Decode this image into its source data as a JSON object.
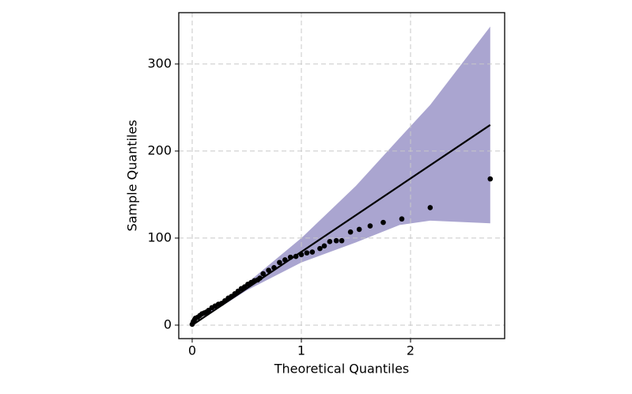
{
  "chart_data": {
    "type": "qqplot",
    "x_label": "Theoretical Quantiles",
    "y_label": "Sample Quantiles",
    "xlim": [
      -0.123,
      2.862
    ],
    "ylim": [
      -15.5,
      359
    ],
    "xticks": [
      0,
      1,
      2
    ],
    "yticks": [
      0,
      100,
      200,
      300
    ],
    "grid": true,
    "points": {
      "color": "#000000",
      "x": [
        0,
        0.01,
        0.02,
        0.03,
        0.05,
        0.07,
        0.09,
        0.11,
        0.13,
        0.15,
        0.18,
        0.21,
        0.24,
        0.27,
        0.3,
        0.33,
        0.36,
        0.39,
        0.42,
        0.45,
        0.48,
        0.51,
        0.54,
        0.57,
        0.6,
        0.62,
        0.65,
        0.7,
        0.75,
        0.8,
        0.85,
        0.9,
        0.95,
        1.0,
        1.05,
        1.1,
        1.17,
        1.21,
        1.26,
        1.32,
        1.37,
        1.45,
        1.53,
        1.63,
        1.75,
        1.92,
        2.18,
        2.73
      ],
      "y": [
        1,
        4,
        6,
        8,
        9,
        11,
        13,
        14,
        15,
        17,
        20,
        22,
        24,
        25,
        28,
        31,
        33,
        36,
        39,
        42,
        44,
        47,
        49,
        51,
        52,
        54,
        59,
        63,
        66,
        72,
        75,
        78,
        79,
        81,
        83,
        84,
        88,
        91,
        96,
        97,
        97,
        107,
        110,
        114,
        118,
        122,
        135,
        168
      ]
    },
    "line": {
      "color": "#000000",
      "x": [
        0,
        2.73
      ],
      "y": [
        0,
        230
      ]
    },
    "band": {
      "color": "#aaa5d0",
      "x": [
        0,
        0.5,
        1.0,
        1.5,
        1.9,
        2.18,
        2.73
      ],
      "upper": [
        0,
        48,
        100,
        160,
        215,
        253,
        343
      ],
      "lower": [
        0,
        40,
        72,
        95,
        115,
        120,
        117
      ]
    }
  }
}
